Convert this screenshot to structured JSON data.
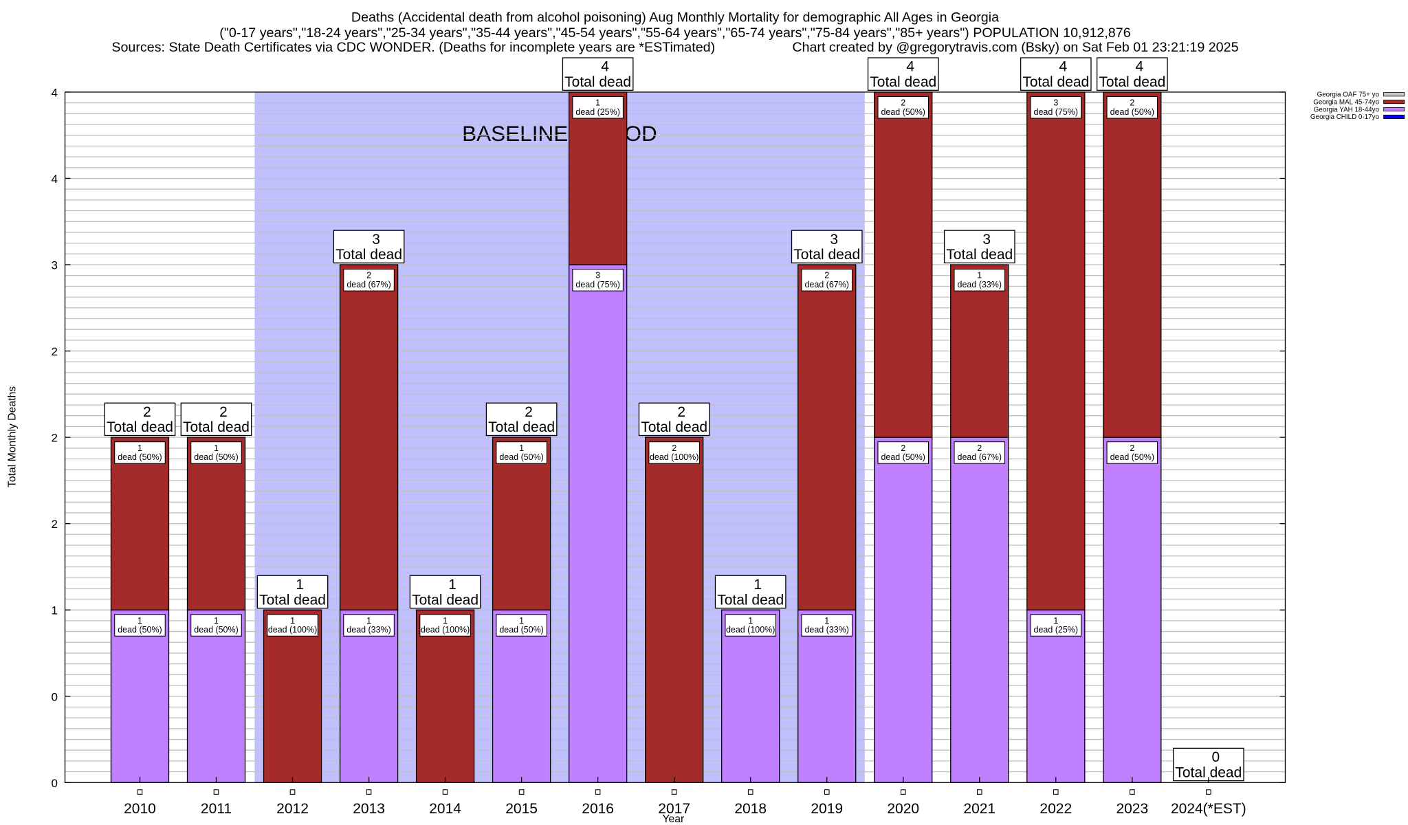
{
  "chart_data": {
    "type": "bar",
    "stacked": true,
    "title_lines": [
      "Deaths (Accidental death from alcohol poisoning) Aug Monthly Mortality for demographic All Ages in Georgia",
      "(\"0-17 years\",\"18-24 years\",\"25-34 years\",\"35-44 years\",\"45-54 years\",\"55-64 years\",\"65-74 years\",\"75-84 years\",\"85+ years\") POPULATION 10,912,876",
      "Sources: State Death Certificates via CDC WONDER. (Deaths for incomplete years are *ESTimated)",
      "Chart created by @gregorytravis.com (Bsky) on Sat Feb 01 23:21:19 2025"
    ],
    "xlabel": "Year",
    "ylabel": "Total Monthly Deaths",
    "ylim": [
      0,
      4
    ],
    "y_ticks": [
      0,
      0.5,
      1,
      1.5,
      2,
      2.5,
      3,
      3.5,
      4
    ],
    "y_tick_labels": [
      "0",
      "0",
      "1",
      "2",
      "2",
      "2",
      "3",
      "4",
      "4"
    ],
    "grid": true,
    "legend_position": "top-right",
    "categories": [
      "2010",
      "2011",
      "2012",
      "2013",
      "2014",
      "2015",
      "2016",
      "2017",
      "2018",
      "2019",
      "2020",
      "2021",
      "2022",
      "2023",
      "2024(*EST)"
    ],
    "series": [
      {
        "name": "Georgia OAF 75+ yo",
        "color": "#c8c8c8",
        "values": [
          0,
          0,
          0,
          0,
          0,
          0,
          0,
          0,
          0,
          0,
          0,
          0,
          0,
          0,
          0
        ]
      },
      {
        "name": "Georgia MAL 45-74yo",
        "color": "#a52a2a",
        "values": [
          1,
          1,
          1,
          2,
          1,
          1,
          1,
          2,
          0,
          2,
          2,
          1,
          3,
          2,
          0
        ],
        "labels": [
          "dead (50%)",
          "dead (50%)",
          "dead (100%)",
          "dead (67%)",
          "dead (100%)",
          "dead (50%)",
          "dead (25%)",
          "dead (100%)",
          "",
          "dead (67%)",
          "dead (50%)",
          "dead (33%)",
          "dead (75%)",
          "dead (50%)",
          ""
        ]
      },
      {
        "name": "Georgia YAH 18-44yo",
        "color": "#c080ff",
        "values": [
          1,
          1,
          0,
          1,
          0,
          1,
          3,
          0,
          1,
          1,
          2,
          2,
          1,
          2,
          0
        ],
        "labels": [
          "dead (50%)",
          "dead (50%)",
          "",
          "dead (33%)",
          "",
          "dead (50%)",
          "dead (75%)",
          "",
          "dead (100%)",
          "dead (33%)",
          "dead (50%)",
          "dead (67%)",
          "dead (25%)",
          "dead (50%)",
          ""
        ]
      },
      {
        "name": "Georgia CHILD 0-17yo",
        "color": "#0000ff",
        "values": [
          0,
          0,
          0,
          0,
          0,
          0,
          0,
          0,
          0,
          0,
          0,
          0,
          0,
          0,
          0
        ]
      }
    ],
    "totals": [
      2,
      2,
      1,
      3,
      1,
      2,
      4,
      2,
      1,
      3,
      4,
      3,
      4,
      4,
      0
    ],
    "total_label": "Total dead",
    "baseline": {
      "label": "BASELINE PERIOD",
      "from": "2012",
      "to": "2019",
      "color": "#c0c0ff"
    }
  }
}
